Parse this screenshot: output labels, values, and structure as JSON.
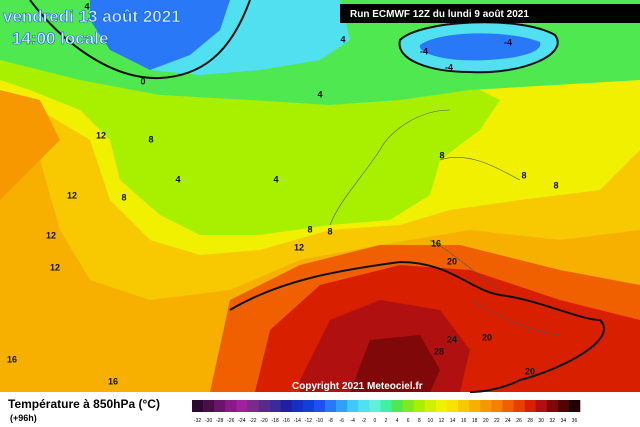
{
  "header": {
    "date": "vendredi 13 août 2021",
    "time": "14:00 locale",
    "run": "Run ECMWF 12Z du lundi 9 août 2021"
  },
  "map": {
    "contour_labels": [
      "4",
      "0",
      "4",
      "4",
      "12",
      "8",
      "8",
      "4",
      "4",
      "8",
      "8",
      "8",
      "8",
      "8",
      "12",
      "12",
      "12",
      "12",
      "16",
      "20",
      "20",
      "20",
      "24",
      "28",
      "16",
      "16",
      "-4",
      "-4",
      "-4"
    ],
    "copyright": "Copyright 2021 Meteociel.fr"
  },
  "legend": {
    "title": "Température à 850hPa (°C)",
    "lead": "(+96h)",
    "ticks": [
      -32,
      -30,
      -28,
      -26,
      -24,
      -22,
      -20,
      -18,
      -16,
      -14,
      -12,
      -10,
      -8,
      -6,
      -4,
      -2,
      0,
      2,
      4,
      6,
      8,
      10,
      12,
      14,
      16,
      18,
      20,
      22,
      24,
      26,
      28,
      30,
      32,
      34,
      36
    ],
    "colors": [
      "#2d0a2d",
      "#4a0f4a",
      "#6a146a",
      "#8a1a8a",
      "#a020a0",
      "#7a2a8a",
      "#5a2a8a",
      "#3a2a9a",
      "#2020a0",
      "#1830c0",
      "#1040d8",
      "#2050f0",
      "#2878f8",
      "#30a0f8",
      "#40c8f8",
      "#50e0f0",
      "#60f0d8",
      "#40f0a0",
      "#50e850",
      "#80e820",
      "#a8f000",
      "#d0f000",
      "#f0f000",
      "#f8e000",
      "#f8c800",
      "#f8b000",
      "#f89800",
      "#f88000",
      "#f06000",
      "#e84000",
      "#d82000",
      "#b01010",
      "#800808",
      "#500404",
      "#200000"
    ]
  }
}
